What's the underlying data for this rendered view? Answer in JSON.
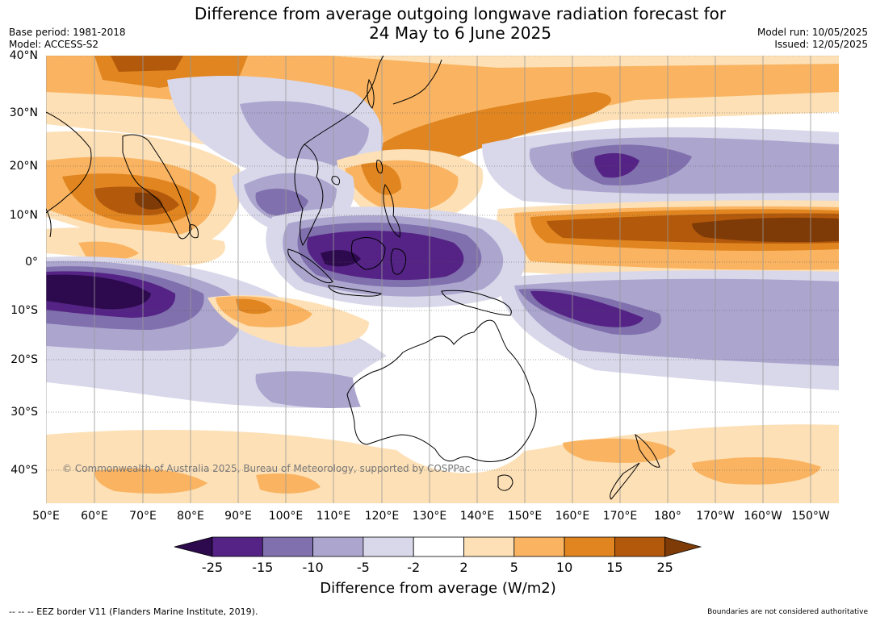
{
  "title": {
    "line1": "Difference from average outgoing longwave radiation forecast for",
    "line2": "24 May to 6 June 2025"
  },
  "meta": {
    "base_period": "Base period: 1981-2018",
    "model": "Model: ACCESS-S2",
    "model_run": "Model run: 10/05/2025",
    "issued": "Issued: 12/05/2025"
  },
  "map": {
    "lat_labels": [
      "40°N",
      "30°N",
      "20°N",
      "10°N",
      "0°",
      "10°S",
      "20°S",
      "30°S",
      "40°S"
    ],
    "lon_labels": [
      "50°E",
      "60°E",
      "70°E",
      "80°E",
      "90°E",
      "100°E",
      "110°E",
      "120°E",
      "130°E",
      "140°E",
      "150°E",
      "160°E",
      "170°E",
      "180°",
      "170°W",
      "160°W",
      "150°W"
    ],
    "copyright": "© Commonwealth of Australia 2025, Bureau of Meteorology, supported by COSPPac"
  },
  "colorbar": {
    "ticks": [
      "-25",
      "-15",
      "-10",
      "-5",
      "-2",
      "2",
      "5",
      "10",
      "15",
      "25"
    ],
    "colors": [
      "#2d0a4e",
      "#542385",
      "#8070ad",
      "#aca6cf",
      "#d9d8ea",
      "#ffffff",
      "#fde0b6",
      "#fab461",
      "#e0851f",
      "#b3590b",
      "#7f3b07"
    ],
    "title": "Difference from average (W/m2)"
  },
  "footer": {
    "eez": "--  --  -- EEZ border V11 (Flanders Marine Institute, 2019).",
    "disclaimer": "Boundaries are not considered authoritative"
  }
}
